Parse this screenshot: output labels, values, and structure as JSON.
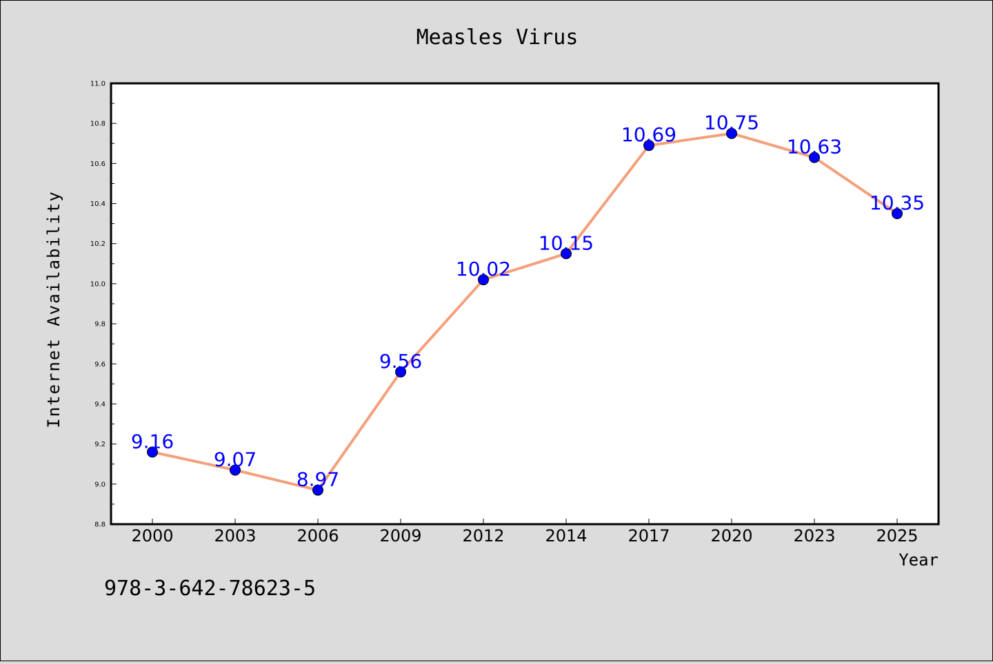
{
  "chart_data": {
    "type": "line",
    "title": "Measles Virus",
    "xlabel": "Year",
    "ylabel": "Internet Availability",
    "categories": [
      "2000",
      "2003",
      "2006",
      "2009",
      "2012",
      "2014",
      "2017",
      "2020",
      "2023",
      "2025"
    ],
    "series": [
      {
        "values": [
          9.16,
          9.07,
          8.97,
          9.56,
          10.02,
          10.15,
          10.69,
          10.75,
          10.63,
          10.35
        ],
        "line_color": "#f4a07c",
        "marker_color": "#0000ff"
      }
    ],
    "data_labels": [
      "9.16",
      "9.07",
      "8.97",
      "9.56",
      "10.02",
      "10.15",
      "10.69",
      "10.75",
      "10.63",
      "10.35"
    ],
    "ylim": [
      8.8,
      11.0
    ],
    "yticks": [
      "8.8",
      "9.0",
      "9.2",
      "9.4",
      "9.6",
      "9.8",
      "10.0",
      "10.2",
      "10.4",
      "10.6",
      "10.8",
      "11.0"
    ],
    "grid": false,
    "label_color": "#0000ff"
  },
  "footer": {
    "isbn": "978-3-642-78623-5"
  }
}
